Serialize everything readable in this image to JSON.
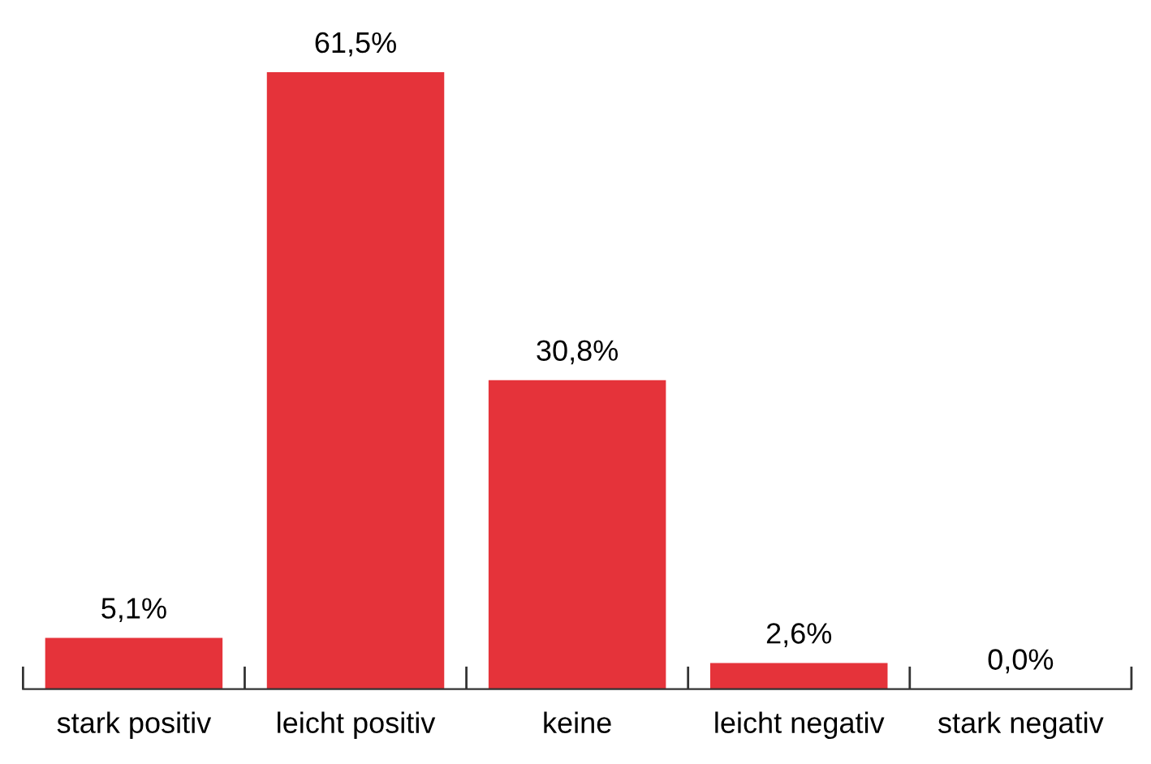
{
  "chart_data": {
    "type": "bar",
    "categories": [
      "stark positiv",
      "leicht positiv",
      "keine",
      "leicht negativ",
      "stark negativ"
    ],
    "values": [
      5.1,
      61.5,
      30.8,
      2.6,
      0.0
    ],
    "value_labels": [
      "5,1%",
      "61,5%",
      "30,8%",
      "2,6%",
      "0,0%"
    ],
    "color": "#e5333a",
    "grid": false,
    "legend": false
  }
}
